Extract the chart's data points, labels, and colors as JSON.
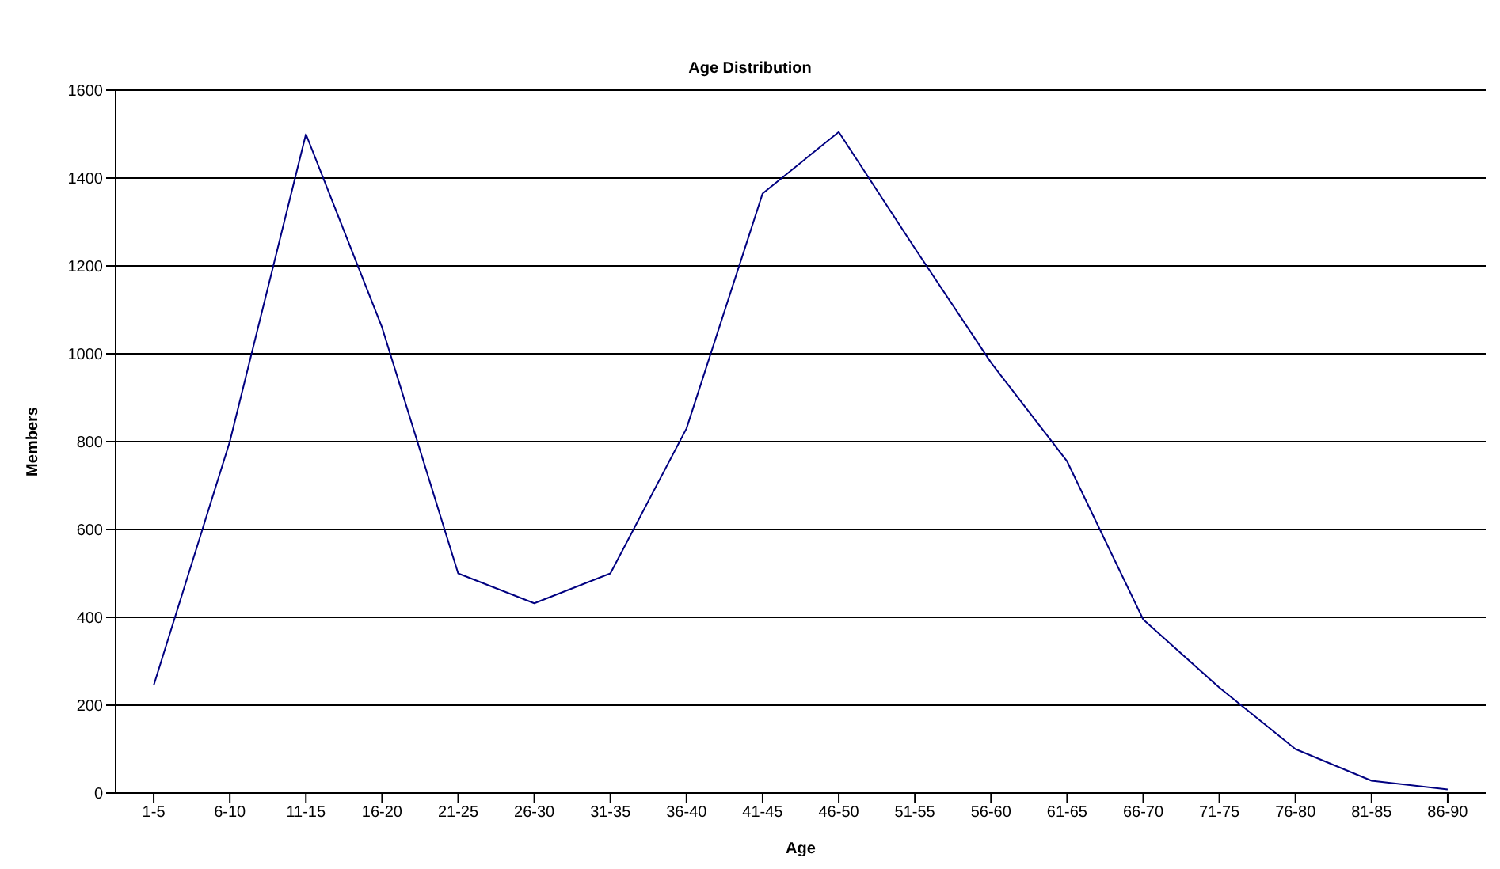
{
  "chart_data": {
    "type": "line",
    "title": "Age Distribution",
    "xlabel": "Age",
    "ylabel": "Members",
    "categories": [
      "1-5",
      "6-10",
      "11-15",
      "16-20",
      "21-25",
      "26-30",
      "31-35",
      "36-40",
      "41-45",
      "46-50",
      "51-55",
      "56-60",
      "61-65",
      "66-70",
      "71-75",
      "76-80",
      "81-85",
      "86-90"
    ],
    "series": [
      {
        "color": "#000080",
        "values": [
          245,
          800,
          1500,
          1060,
          500,
          432,
          500,
          830,
          1365,
          1505,
          1240,
          980,
          755,
          395,
          240,
          100,
          28,
          8
        ]
      }
    ],
    "ylim": [
      0,
      1600
    ],
    "yticks": [
      0,
      200,
      400,
      600,
      800,
      1000,
      1200,
      1400,
      1600
    ],
    "grid": "y",
    "legend": false,
    "marker": "none",
    "line_style": "solid"
  }
}
